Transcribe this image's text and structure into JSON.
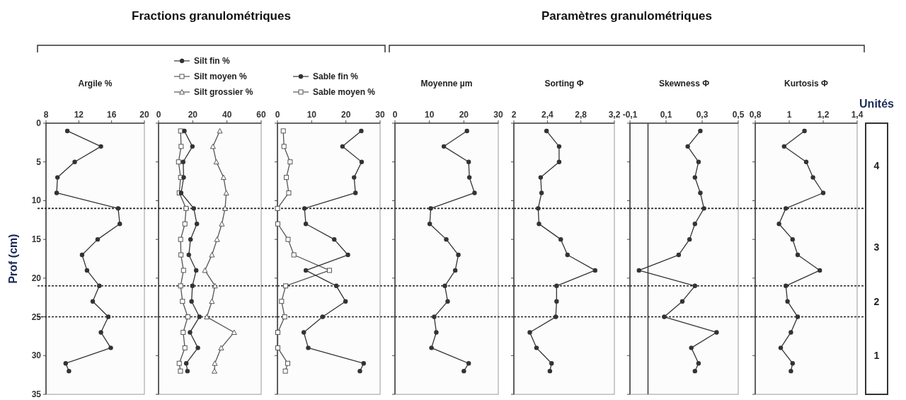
{
  "chart_data": [
    {
      "type": "line",
      "title": "Argile %",
      "ylabel": "Prof (cm)",
      "annotations": [
        "Fractions granulométriques"
      ],
      "marker": "circle",
      "xlim": [
        8,
        20
      ],
      "xticks": [
        8,
        12,
        16,
        20
      ],
      "ylim": [
        35,
        0
      ],
      "yticks": [
        0,
        5,
        10,
        15,
        20,
        25,
        30,
        35
      ],
      "ref_lines": [
        {
          "axis": "y",
          "value": 11,
          "line_style": "dotted",
          "color": "#222222"
        },
        {
          "axis": "y",
          "value": 21,
          "line_style": "dotted",
          "color": "#222222"
        },
        {
          "axis": "y",
          "value": 25,
          "line_style": "dotted",
          "color": "#222222"
        }
      ],
      "series": [
        {
          "color": "#333333",
          "x": [
            10.6,
            14.7,
            11.5,
            9.4,
            9.3,
            16.8,
            17.0,
            14.3,
            12.4,
            13.0,
            14.5,
            13.7,
            15.6,
            14.7,
            15.9,
            10.4,
            10.8
          ],
          "values": [
            1,
            3,
            5,
            7,
            9,
            11,
            13,
            15,
            17,
            19,
            21,
            23,
            25,
            27,
            29,
            31,
            32
          ]
        }
      ]
    },
    {
      "type": "line",
      "legend": "top",
      "tick_labels": "x",
      "xlim": [
        0,
        60
      ],
      "xticks": [
        0,
        20,
        40,
        60
      ],
      "ylim": [
        35,
        0
      ],
      "yticks": [
        0,
        5,
        10,
        15,
        20,
        25,
        30,
        35
      ],
      "ref_lines": [
        {
          "axis": "y",
          "value": 11,
          "line_style": "dotted",
          "color": "#222222"
        },
        {
          "axis": "y",
          "value": 21,
          "line_style": "dotted",
          "color": "#222222"
        },
        {
          "axis": "y",
          "value": 25,
          "line_style": "dotted",
          "color": "#222222"
        }
      ],
      "series": [
        {
          "name": "Silt fin %",
          "marker": "circle",
          "color": "#333333",
          "x": [
            15.1,
            19.8,
            14.4,
            14.7,
            13.2,
            20.6,
            22.4,
            18.7,
            17.7,
            22.0,
            19.8,
            19.3,
            23.9,
            18.4,
            23.0,
            16.2,
            16.9
          ],
          "values": [
            1,
            3,
            5,
            7,
            9,
            11,
            13,
            15,
            17,
            19,
            21,
            23,
            25,
            27,
            29,
            31,
            32
          ]
        },
        {
          "name": "Silt moyen %",
          "marker": "square",
          "color": "#555555",
          "x": [
            12.9,
            13.2,
            11.7,
            12.9,
            12.1,
            16.1,
            15.4,
            12.9,
            13.1,
            14.6,
            12.9,
            14.0,
            17.1,
            14.4,
            15.4,
            12.1,
            12.8
          ],
          "values": [
            1,
            3,
            5,
            7,
            9,
            11,
            13,
            15,
            17,
            19,
            21,
            23,
            25,
            27,
            29,
            31,
            32
          ]
        },
        {
          "name": "Silt grossier %",
          "marker": "triangle",
          "color": "#555555",
          "x": [
            35.8,
            31.8,
            33.8,
            38.0,
            39.6,
            38.9,
            37.0,
            34.2,
            31.2,
            27.1,
            33.0,
            31.2,
            28.2,
            44.2,
            36.6,
            32.9,
            32.7
          ],
          "values": [
            1,
            3,
            5,
            7,
            9,
            11,
            13,
            15,
            17,
            19,
            21,
            23,
            25,
            27,
            29,
            31,
            32
          ]
        }
      ]
    },
    {
      "type": "line",
      "legend": "top",
      "tick_labels": "x",
      "xlim": [
        0,
        30
      ],
      "xticks": [
        0,
        10,
        20,
        30
      ],
      "ylim": [
        35,
        0
      ],
      "yticks": [
        0,
        5,
        10,
        15,
        20,
        25,
        30,
        35
      ],
      "ref_lines": [
        {
          "axis": "y",
          "value": 11,
          "line_style": "dotted",
          "color": "#222222"
        },
        {
          "axis": "y",
          "value": 21,
          "line_style": "dotted",
          "color": "#222222"
        },
        {
          "axis": "y",
          "value": 25,
          "line_style": "dotted",
          "color": "#222222"
        }
      ],
      "series": [
        {
          "name": "Sable fin %",
          "marker": "circle",
          "color": "#333333",
          "x": [
            24.5,
            19.0,
            24.6,
            22.4,
            22.8,
            7.9,
            8.3,
            16.6,
            20.6,
            8.3,
            17.2,
            19.9,
            13.2,
            7.7,
            9.0,
            25.2,
            24.1
          ],
          "values": [
            1,
            3,
            5,
            7,
            9,
            11,
            13,
            15,
            17,
            19,
            21,
            23,
            25,
            27,
            29,
            31,
            32
          ]
        },
        {
          "name": "Sable moyen %",
          "marker": "square",
          "color": "#555555",
          "x": [
            1.7,
            1.9,
            3.7,
            2.6,
            3.3,
            0,
            0.1,
            3.1,
            4.8,
            15.2,
            2.4,
            1.2,
            2.1,
            0.1,
            0.1,
            3.0,
            2.3
          ],
          "values": [
            1,
            3,
            5,
            7,
            9,
            11,
            13,
            15,
            17,
            19,
            21,
            23,
            25,
            27,
            29,
            31,
            32
          ]
        }
      ]
    },
    {
      "type": "line",
      "title": "Moyenne µm",
      "annotations": [
        "Paramètres granulométriques"
      ],
      "tick_labels": "x",
      "marker": "circle",
      "xlim": [
        0,
        30
      ],
      "xticks": [
        0,
        10,
        20,
        30
      ],
      "ylim": [
        35,
        0
      ],
      "yticks": [
        0,
        5,
        10,
        15,
        20,
        25,
        30,
        35
      ],
      "ref_lines": [
        {
          "axis": "y",
          "value": 11,
          "line_style": "dotted",
          "color": "#222222"
        },
        {
          "axis": "y",
          "value": 21,
          "line_style": "dotted",
          "color": "#222222"
        },
        {
          "axis": "y",
          "value": 25,
          "line_style": "dotted",
          "color": "#222222"
        }
      ],
      "series": [
        {
          "color": "#333333",
          "x": [
            20.9,
            14.2,
            21.4,
            21.6,
            23.1,
            10.4,
            10.1,
            14.9,
            18.4,
            17.5,
            14.5,
            15.3,
            11.4,
            12.0,
            10.6,
            21.4,
            20.0
          ],
          "values": [
            1,
            3,
            5,
            7,
            9,
            11,
            13,
            15,
            17,
            19,
            21,
            23,
            25,
            27,
            29,
            31,
            32
          ]
        }
      ]
    },
    {
      "type": "line",
      "title": "Sorting Φ",
      "tick_labels": "x",
      "marker": "circle",
      "xlim": [
        2,
        3.2
      ],
      "xticks": [
        2,
        {
          "value": 2.4,
          "label": "2,4"
        },
        {
          "value": 2.8,
          "label": "2,8"
        },
        {
          "value": 3.2,
          "label": "3,2"
        }
      ],
      "ylim": [
        35,
        0
      ],
      "yticks": [
        0,
        5,
        10,
        15,
        20,
        25,
        30,
        35
      ],
      "ref_lines": [
        {
          "axis": "y",
          "value": 11,
          "line_style": "dotted",
          "color": "#222222"
        },
        {
          "axis": "y",
          "value": 21,
          "line_style": "dotted",
          "color": "#222222"
        },
        {
          "axis": "y",
          "value": 25,
          "line_style": "dotted",
          "color": "#222222"
        }
      ],
      "series": [
        {
          "color": "#333333",
          "x": [
            2.39,
            2.54,
            2.54,
            2.32,
            2.33,
            2.29,
            2.3,
            2.56,
            2.64,
            2.97,
            2.51,
            2.51,
            2.5,
            2.19,
            2.27,
            2.45,
            2.43
          ],
          "values": [
            1,
            3,
            5,
            7,
            9,
            11,
            13,
            15,
            17,
            19,
            21,
            23,
            25,
            27,
            29,
            31,
            32
          ]
        }
      ]
    },
    {
      "type": "line",
      "title": "Skewness Φ",
      "tick_labels": "x",
      "marker": "circle",
      "xlim": [
        -0.1,
        0.5
      ],
      "xticks": [
        {
          "value": -0.1,
          "label": "-0,1"
        },
        {
          "value": 0.1,
          "label": "0,1"
        },
        {
          "value": 0.3,
          "label": "0,3"
        },
        {
          "value": 0.5,
          "label": "0,5"
        }
      ],
      "ylim": [
        35,
        0
      ],
      "yticks": [
        0,
        5,
        10,
        15,
        20,
        25,
        30,
        35
      ],
      "ref_lines": [
        {
          "axis": "x",
          "value": 0,
          "line_style": "solid",
          "color": "#444444"
        },
        {
          "axis": "y",
          "value": 11,
          "line_style": "dotted",
          "color": "#222222"
        },
        {
          "axis": "y",
          "value": 21,
          "line_style": "dotted",
          "color": "#222222"
        },
        {
          "axis": "y",
          "value": 25,
          "line_style": "dotted",
          "color": "#222222"
        }
      ],
      "series": [
        {
          "color": "#333333",
          "x": [
            0.29,
            0.22,
            0.28,
            0.26,
            0.29,
            0.31,
            0.26,
            0.23,
            0.17,
            -0.05,
            0.26,
            0.19,
            0.09,
            0.38,
            0.24,
            0.28,
            0.26
          ],
          "values": [
            1,
            3,
            5,
            7,
            9,
            11,
            13,
            15,
            17,
            19,
            21,
            23,
            25,
            27,
            29,
            31,
            32
          ]
        }
      ]
    },
    {
      "type": "line",
      "title": "Kurtosis Φ",
      "tick_labels": "x",
      "marker": "circle",
      "xlim": [
        0.8,
        1.4
      ],
      "xticks": [
        {
          "value": 0.8,
          "label": "0,8"
        },
        1,
        {
          "value": 1.2,
          "label": "1,2"
        },
        {
          "value": 1.4,
          "label": "1,4"
        }
      ],
      "ylim": [
        35,
        0
      ],
      "yticks": [
        0,
        5,
        10,
        15,
        20,
        25,
        30,
        35
      ],
      "ref_lines": [
        {
          "axis": "y",
          "value": 11,
          "line_style": "dotted",
          "color": "#222222"
        },
        {
          "axis": "y",
          "value": 21,
          "line_style": "dotted",
          "color": "#222222"
        },
        {
          "axis": "y",
          "value": 25,
          "line_style": "dotted",
          "color": "#222222"
        }
      ],
      "series": [
        {
          "color": "#333333",
          "x": [
            1.09,
            0.97,
            1.1,
            1.14,
            1.2,
            0.98,
            0.94,
            1.02,
            1.05,
            1.18,
            0.98,
            0.99,
            1.05,
            1.01,
            0.95,
            1.02,
            1.01
          ],
          "values": [
            1,
            3,
            5,
            7,
            9,
            11,
            13,
            15,
            17,
            19,
            21,
            23,
            25,
            27,
            29,
            31,
            32
          ]
        }
      ]
    },
    {
      "type": "other",
      "title": "Unités",
      "annotations": [
        "4",
        "3",
        "2",
        "1"
      ]
    }
  ]
}
